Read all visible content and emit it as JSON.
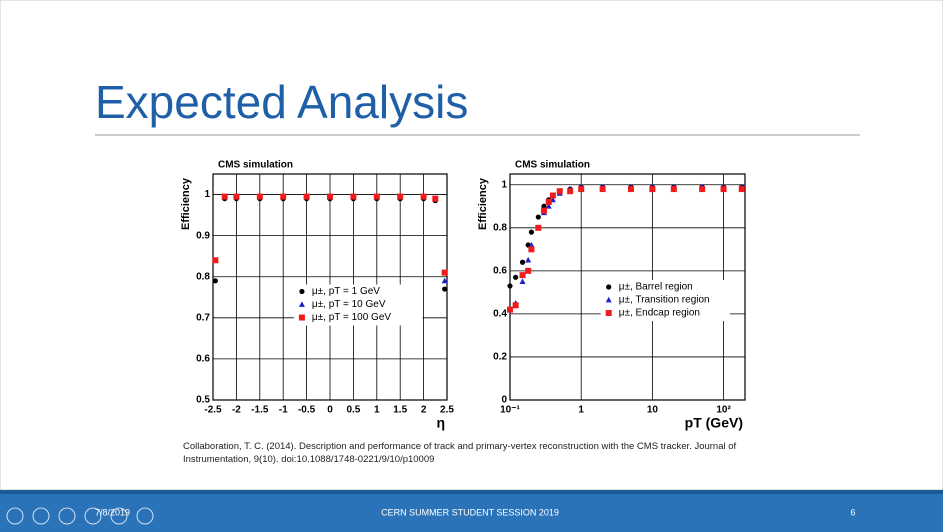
{
  "slide": {
    "title": "Expected Analysis",
    "citation": "Collaboration, T. C. (2014). Description and performance of track and primary-vertex reconstruction with the CMS tracker. Journal of Instrumentation, 9(10). doi:10.1088/1748-0221/9/10/p10009",
    "footer": {
      "date": "7/8/2019",
      "center": "CERN SUMMER STUDENT SESSION 2019",
      "page": "6"
    }
  },
  "chart_data": [
    {
      "type": "scatter",
      "title": "CMS simulation",
      "y_label": "Efficiency",
      "x_label": "η",
      "xscale": "linear",
      "grid": true,
      "legend": "lower center",
      "xlim": [
        -2.5,
        2.5
      ],
      "xticks": [
        -2.5,
        -2,
        -1.5,
        -1,
        -0.5,
        0,
        0.5,
        1,
        1.5,
        2,
        2.5
      ],
      "ylim": [
        0.5,
        1.05
      ],
      "yticks": [
        0.5,
        0.6,
        0.7,
        0.8,
        0.9,
        1
      ],
      "x": [
        -2.45,
        -2.25,
        -2,
        -1.5,
        -1,
        -0.5,
        0,
        0.5,
        1,
        1.5,
        2,
        2.25,
        2.45
      ],
      "series": [
        {
          "name": "μ±, pT = 1 GeV",
          "color": "#000000",
          "marker": "circle",
          "values": [
            0.79,
            0.99,
            0.99,
            0.99,
            0.99,
            0.99,
            0.99,
            0.99,
            0.99,
            0.99,
            0.99,
            0.985,
            0.77
          ]
        },
        {
          "name": "μ±, pT = 10 GeV",
          "color": "#1f1fd0",
          "marker": "triangle",
          "values": [
            0.84,
            0.995,
            0.995,
            0.995,
            0.995,
            0.995,
            0.995,
            0.995,
            0.995,
            0.995,
            0.995,
            0.99,
            0.79
          ]
        },
        {
          "name": "μ±, pT = 100 GeV",
          "color": "#ee1c1c",
          "marker": "square",
          "values": [
            0.84,
            0.995,
            0.995,
            0.995,
            0.995,
            0.995,
            0.995,
            0.995,
            0.995,
            0.995,
            0.995,
            0.99,
            0.81
          ]
        }
      ]
    },
    {
      "type": "scatter",
      "title": "CMS simulation",
      "y_label": "Efficiency",
      "x_label": "pT (GeV)",
      "xscale": "log",
      "grid": true,
      "legend": "center right",
      "xlim": [
        0.1,
        200
      ],
      "xticks": [
        {
          "value": 0.1,
          "label": "10⁻¹"
        },
        1,
        10,
        {
          "value": 100,
          "label": "10²"
        }
      ],
      "ylim": [
        0,
        1.05
      ],
      "yticks": [
        0,
        0.2,
        0.4,
        0.6,
        0.8,
        1
      ],
      "x": [
        0.1,
        0.12,
        0.15,
        0.18,
        0.2,
        0.25,
        0.3,
        0.35,
        0.4,
        0.5,
        0.7,
        1,
        2,
        5,
        10,
        20,
        50,
        100,
        180
      ],
      "series": [
        {
          "name": "μ±, Barrel region",
          "color": "#000000",
          "marker": "circle",
          "values": [
            0.53,
            0.57,
            0.64,
            0.72,
            0.78,
            0.85,
            0.9,
            0.93,
            0.95,
            0.97,
            0.98,
            0.99,
            0.99,
            0.99,
            0.99,
            0.99,
            0.99,
            0.99,
            0.99
          ]
        },
        {
          "name": "μ±, Transition region",
          "color": "#1f1fd0",
          "marker": "triangle",
          "values": [
            0.42,
            0.45,
            0.55,
            0.65,
            0.72,
            0.8,
            0.87,
            0.9,
            0.93,
            0.96,
            0.98,
            0.99,
            0.99,
            0.99,
            0.99,
            0.99,
            0.99,
            0.99,
            0.99
          ]
        },
        {
          "name": "μ±, Endcap region",
          "color": "#ee1c1c",
          "marker": "square",
          "values": [
            0.42,
            0.44,
            0.58,
            0.6,
            0.7,
            0.8,
            0.88,
            0.92,
            0.95,
            0.97,
            0.97,
            0.98,
            0.98,
            0.98,
            0.98,
            0.98,
            0.98,
            0.98,
            0.98
          ]
        }
      ]
    }
  ]
}
